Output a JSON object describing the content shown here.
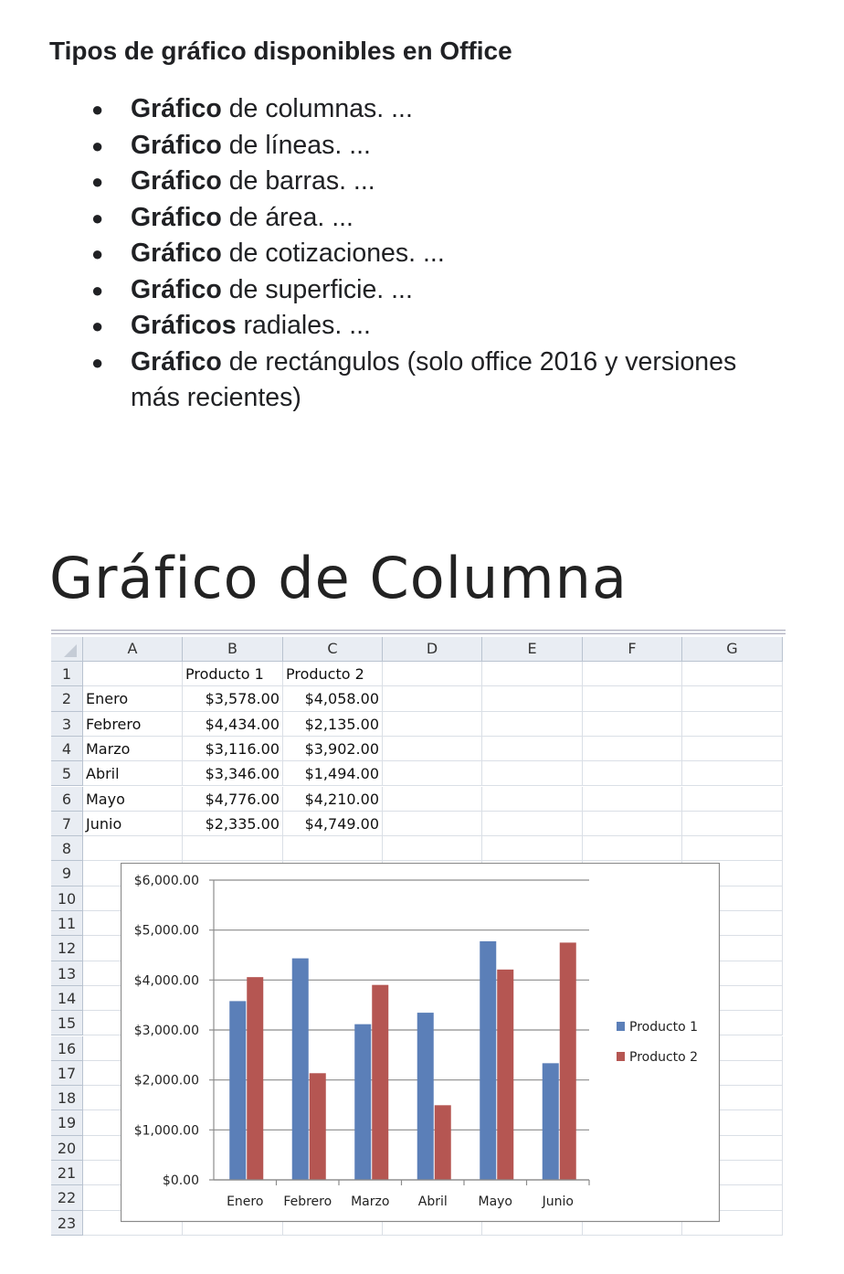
{
  "heading": "Tipos de gráfico disponibles en Office",
  "list": [
    {
      "bold": "Gráfico",
      "rest": " de columnas. ..."
    },
    {
      "bold": "Gráfico",
      "rest": " de líneas. ..."
    },
    {
      "bold": "Gráfico",
      "rest": " de barras. ..."
    },
    {
      "bold": "Gráfico",
      "rest": " de área. ..."
    },
    {
      "bold": "Gráfico",
      "rest": " de cotizaciones. ..."
    },
    {
      "bold": "Gráfico",
      "rest": " de superficie. ..."
    },
    {
      "bold": "Gráficos",
      "rest": " radiales. ..."
    },
    {
      "bold": "Gráfico",
      "rest": " de rectángulos (solo office 2016 y versiones más recientes)"
    }
  ],
  "bullet": "●",
  "section_title": "Gráfico de Columna",
  "spreadsheet": {
    "columns": [
      "A",
      "B",
      "C",
      "D",
      "E",
      "F",
      "G"
    ],
    "row_numbers": [
      "1",
      "2",
      "3",
      "4",
      "5",
      "6",
      "7",
      "8",
      "9",
      "10",
      "11",
      "12",
      "13",
      "14",
      "15",
      "16",
      "17",
      "18",
      "19",
      "20",
      "21",
      "22",
      "23"
    ],
    "rows": [
      [
        "",
        "Producto 1",
        "Producto 2"
      ],
      [
        "Enero",
        "$3,578.00",
        "$4,058.00"
      ],
      [
        "Febrero",
        "$4,434.00",
        "$2,135.00"
      ],
      [
        "Marzo",
        "$3,116.00",
        "$3,902.00"
      ],
      [
        "Abril",
        "$3,346.00",
        "$1,494.00"
      ],
      [
        "Mayo",
        "$4,776.00",
        "$4,210.00"
      ],
      [
        "Junio",
        "$2,335.00",
        "$4,749.00"
      ]
    ]
  },
  "chart_data": {
    "type": "bar",
    "categories": [
      "Enero",
      "Febrero",
      "Marzo",
      "Abril",
      "Mayo",
      "Junio"
    ],
    "series": [
      {
        "name": "Producto 1",
        "values": [
          3578,
          4434,
          3116,
          3346,
          4776,
          2335
        ],
        "color": "#5b7fb8"
      },
      {
        "name": "Producto 2",
        "values": [
          4058,
          2135,
          3902,
          1494,
          4210,
          4749
        ],
        "color": "#b55652"
      }
    ],
    "ylim": [
      0,
      6000
    ],
    "yticks": [
      "$0.00",
      "$1,000.00",
      "$2,000.00",
      "$3,000.00",
      "$4,000.00",
      "$5,000.00",
      "$6,000.00"
    ],
    "grid": true,
    "legend": "right"
  }
}
